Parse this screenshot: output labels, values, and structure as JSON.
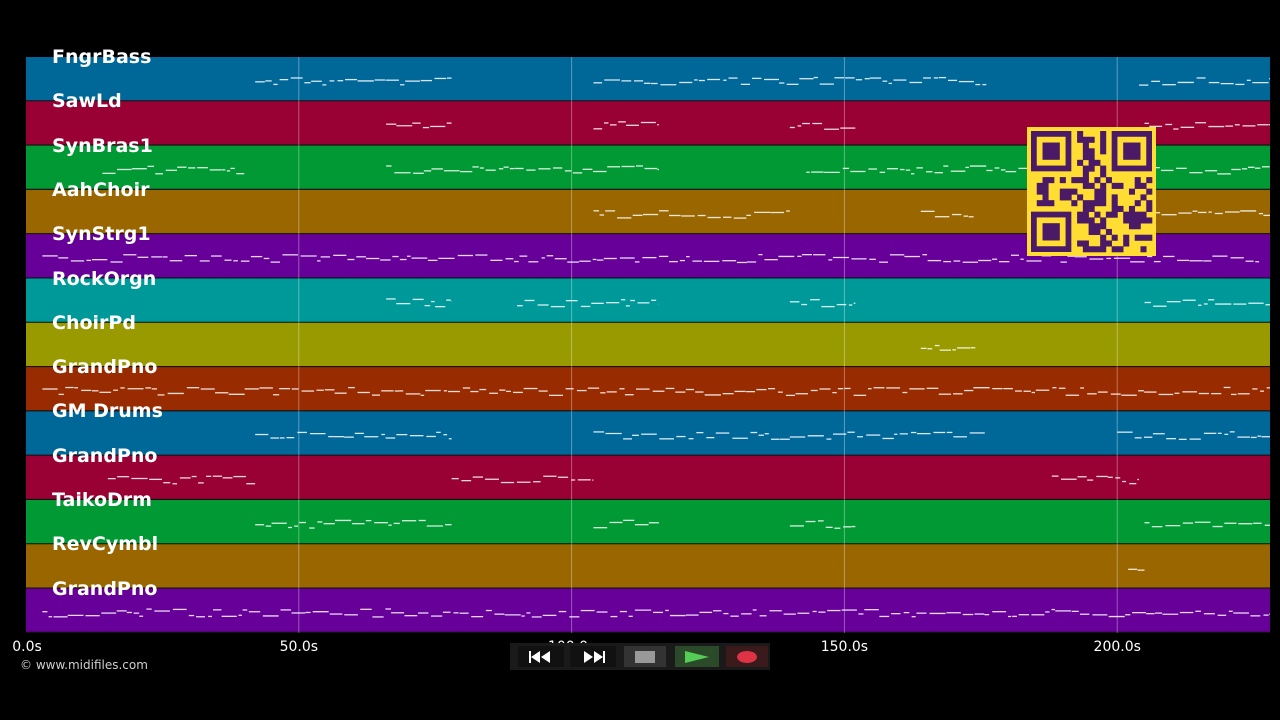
{
  "tracks": [
    {
      "name": "FngrBass",
      "color": "#006799"
    },
    {
      "name": "SawLd",
      "color": "#990033"
    },
    {
      "name": "SynBras1",
      "color": "#009933"
    },
    {
      "name": "AahChoir",
      "color": "#996600"
    },
    {
      "name": "SynStrg1",
      "color": "#660099"
    },
    {
      "name": "RockOrgn",
      "color": "#009999"
    },
    {
      "name": "ChoirPd",
      "color": "#999900"
    },
    {
      "name": "GrandPno",
      "color": "#992b00"
    },
    {
      "name": "GM Drums",
      "color": "#006799"
    },
    {
      "name": "GrandPno",
      "color": "#990033"
    },
    {
      "name": "TaikoDrm",
      "color": "#009933"
    },
    {
      "name": "RevCymbl",
      "color": "#996600"
    },
    {
      "name": "GrandPno",
      "color": "#660099"
    }
  ],
  "axis": {
    "ticks": [
      "0.0s",
      "50.0s",
      "100.0s",
      "150.0s",
      "200.0s"
    ],
    "tick_values": [
      0,
      50,
      100,
      150,
      200
    ],
    "max_seconds": 228
  },
  "credit": "© www.midifiles.com",
  "transport": {
    "buttons": [
      {
        "name": "rewind-icon",
        "color": "#ffffff"
      },
      {
        "name": "fast-forward-icon",
        "color": "#ffffff"
      },
      {
        "name": "stop-icon",
        "color": "#888888"
      },
      {
        "name": "play-icon",
        "color": "#55bb55"
      },
      {
        "name": "record-icon",
        "color": "#dd3344"
      }
    ]
  },
  "qr_code": {
    "color": "#ffdd33",
    "dark": "#4a1a66"
  }
}
